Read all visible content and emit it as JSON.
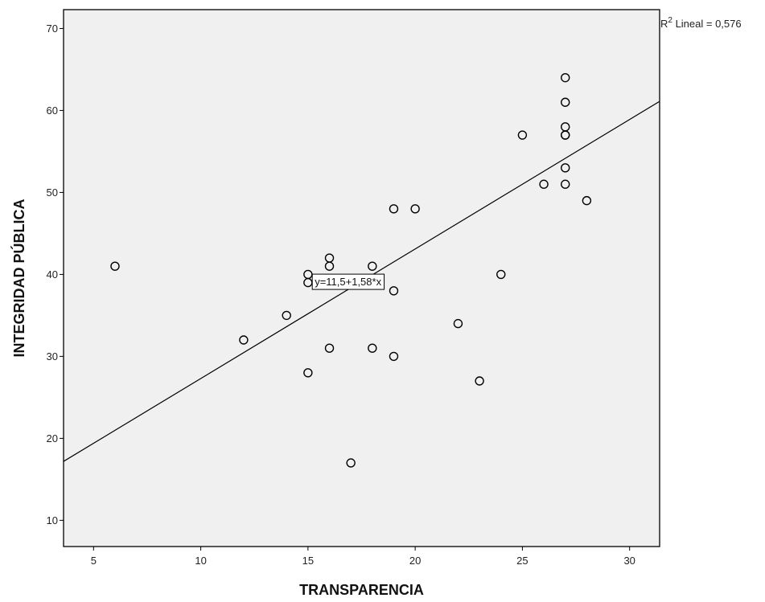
{
  "chart_data": {
    "type": "scatter",
    "xlabel": "TRANSPARENCIA",
    "ylabel": "INTEGRIDAD PÚBLICA",
    "xlim": [
      3.6,
      31.4
    ],
    "ylim": [
      6.8,
      72.3
    ],
    "xticks": [
      5,
      10,
      15,
      20,
      25,
      30
    ],
    "yticks": [
      10,
      20,
      30,
      40,
      50,
      60,
      70
    ],
    "xtick_labels": [
      "5",
      "10",
      "15",
      "20",
      "25",
      "30"
    ],
    "ytick_labels": [
      "10",
      "20",
      "30",
      "40",
      "50",
      "60",
      "70"
    ],
    "grid": false,
    "series": [
      {
        "points": [
          [
            6,
            41
          ],
          [
            12,
            32
          ],
          [
            14,
            35
          ],
          [
            15,
            40
          ],
          [
            15,
            39
          ],
          [
            15,
            28
          ],
          [
            16,
            42
          ],
          [
            16,
            41
          ],
          [
            16,
            31
          ],
          [
            17,
            17
          ],
          [
            18,
            41
          ],
          [
            18,
            31
          ],
          [
            19,
            48
          ],
          [
            19,
            38
          ],
          [
            19,
            30
          ],
          [
            20,
            48
          ],
          [
            22,
            34
          ],
          [
            23,
            27
          ],
          [
            24,
            40
          ],
          [
            25,
            57
          ],
          [
            26,
            51
          ],
          [
            27,
            64
          ],
          [
            27,
            61
          ],
          [
            27,
            58
          ],
          [
            27,
            57
          ],
          [
            27,
            57
          ],
          [
            27,
            53
          ],
          [
            27,
            51
          ],
          [
            28,
            49
          ]
        ]
      }
    ],
    "fit_line": {
      "intercept": 11.5,
      "slope": 1.58
    },
    "equation_label": "y=11,5+1,58*x",
    "equation_anchor": [
      15.2,
      39.1
    ],
    "r2_label_prefix": "R",
    "r2_label_sup": "2",
    "r2_label_rest": " Lineal = 0,576",
    "colors": {
      "plot_background": "#f0f0f0",
      "marker_stroke": "#000000",
      "line": "#000000"
    }
  }
}
